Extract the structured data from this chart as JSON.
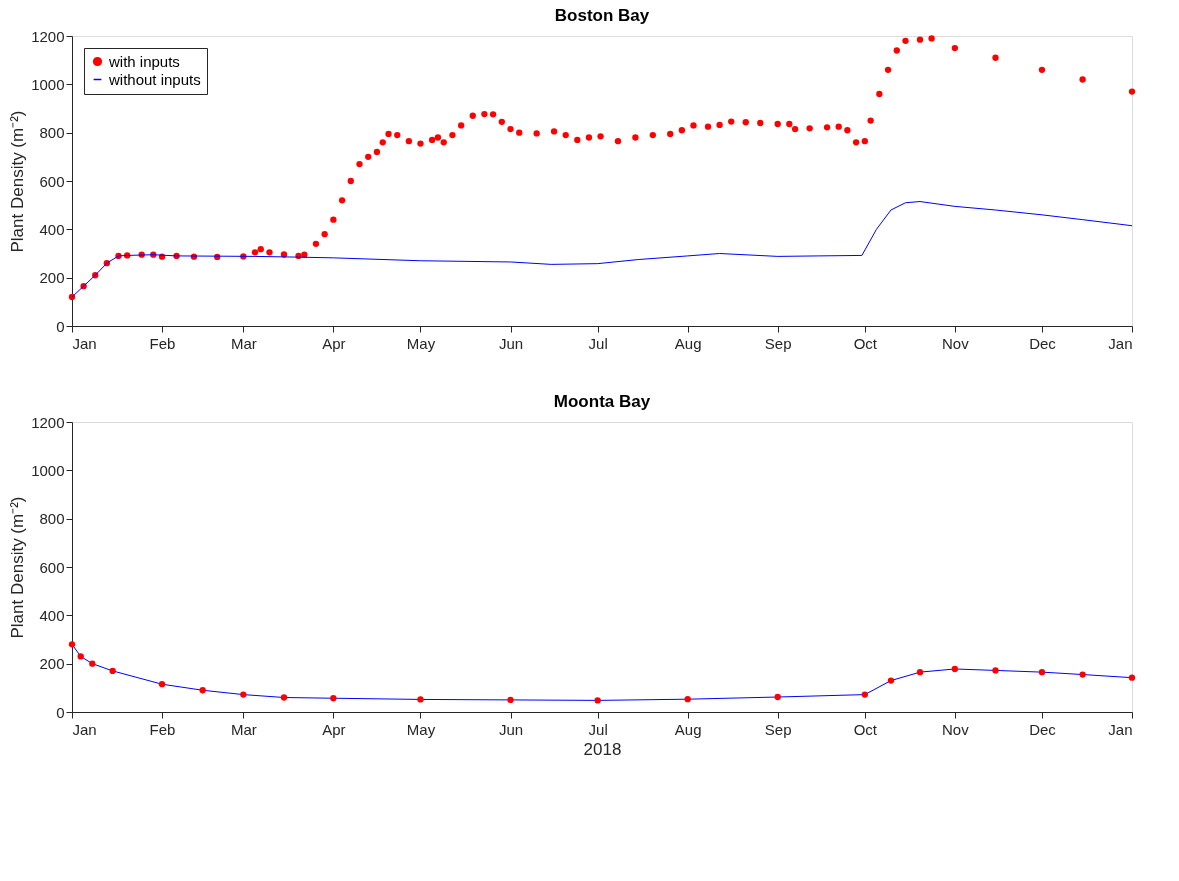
{
  "chart_data": [
    {
      "type": "line",
      "title": "Boston Bay",
      "ylabel": "Plant Density (m⁻²)",
      "xlim": [
        "2018-01-01",
        "2019-01-01"
      ],
      "xticks": [
        {
          "value": "2018-01-01",
          "label": "Jan"
        },
        {
          "value": "2018-02-01",
          "label": "Feb"
        },
        {
          "value": "2018-03-01",
          "label": "Mar"
        },
        {
          "value": "2018-04-01",
          "label": "Apr"
        },
        {
          "value": "2018-05-01",
          "label": "May"
        },
        {
          "value": "2018-06-01",
          "label": "Jun"
        },
        {
          "value": "2018-07-01",
          "label": "Jul"
        },
        {
          "value": "2018-08-01",
          "label": "Aug"
        },
        {
          "value": "2018-09-01",
          "label": "Sep"
        },
        {
          "value": "2018-10-01",
          "label": "Oct"
        },
        {
          "value": "2018-11-01",
          "label": "Nov"
        },
        {
          "value": "2018-12-01",
          "label": "Dec"
        },
        {
          "value": "2019-01-01",
          "label": "Jan"
        }
      ],
      "ylim": [
        0,
        1200
      ],
      "yticks": [
        0,
        200,
        400,
        600,
        800,
        1000,
        1200
      ],
      "grid": false,
      "legend": "top left",
      "series": [
        {
          "name": "with inputs",
          "type": "scatter",
          "marker": "circle",
          "color": "#ff0000",
          "x": [
            "2018-01-01",
            "2018-01-05",
            "2018-01-09",
            "2018-01-13",
            "2018-01-17",
            "2018-01-20",
            "2018-01-25",
            "2018-01-29",
            "2018-02-01",
            "2018-02-06",
            "2018-02-12",
            "2018-02-20",
            "2018-03-01",
            "2018-03-05",
            "2018-03-07",
            "2018-03-10",
            "2018-03-15",
            "2018-03-20",
            "2018-03-22",
            "2018-03-26",
            "2018-03-29",
            "2018-04-01",
            "2018-04-04",
            "2018-04-07",
            "2018-04-10",
            "2018-04-13",
            "2018-04-16",
            "2018-04-18",
            "2018-04-20",
            "2018-04-23",
            "2018-04-27",
            "2018-05-01",
            "2018-05-05",
            "2018-05-07",
            "2018-05-09",
            "2018-05-12",
            "2018-05-15",
            "2018-05-19",
            "2018-05-23",
            "2018-05-26",
            "2018-05-29",
            "2018-06-01",
            "2018-06-04",
            "2018-06-10",
            "2018-06-16",
            "2018-06-20",
            "2018-06-24",
            "2018-06-28",
            "2018-07-02",
            "2018-07-08",
            "2018-07-14",
            "2018-07-20",
            "2018-07-26",
            "2018-07-30",
            "2018-08-03",
            "2018-08-08",
            "2018-08-12",
            "2018-08-16",
            "2018-08-21",
            "2018-08-26",
            "2018-09-01",
            "2018-09-05",
            "2018-09-06",
            "2018-09-07",
            "2018-09-12",
            "2018-09-18",
            "2018-09-22",
            "2018-09-25",
            "2018-09-28",
            "2018-10-01",
            "2018-10-03",
            "2018-10-06",
            "2018-10-09",
            "2018-10-12",
            "2018-10-15",
            "2018-10-20",
            "2018-10-24",
            "2018-11-01",
            "2018-11-15",
            "2018-12-01",
            "2018-12-15",
            "2019-01-01"
          ],
          "values": [
            120,
            165,
            210,
            260,
            290,
            292,
            295,
            295,
            287,
            290,
            287,
            286,
            288,
            305,
            318,
            305,
            296,
            290,
            295,
            340,
            380,
            440,
            520,
            600,
            670,
            700,
            720,
            760,
            795,
            790,
            765,
            755,
            770,
            780,
            760,
            790,
            830,
            870,
            877,
            876,
            845,
            815,
            800,
            797,
            805,
            790,
            770,
            780,
            785,
            765,
            780,
            790,
            795,
            810,
            830,
            825,
            832,
            846,
            843,
            840,
            836,
            836,
            null,
            815,
            818,
            822,
            825,
            810,
            760,
            765,
            850,
            960,
            1060,
            1140,
            1180,
            1185,
            1190,
            1150,
            1110,
            1060,
            1020,
            970
          ]
        },
        {
          "name": "without inputs",
          "marker": "none",
          "color": "#0000ff",
          "x": [
            "2018-01-01",
            "2018-01-05",
            "2018-01-09",
            "2018-01-13",
            "2018-01-17",
            "2018-01-20",
            "2018-01-29",
            "2018-02-06",
            "2018-03-05",
            "2018-03-20",
            "2018-04-01",
            "2018-05-01",
            "2018-06-01",
            "2018-06-15",
            "2018-07-01",
            "2018-07-15",
            "2018-08-01",
            "2018-08-12",
            "2018-09-01",
            "2018-09-15",
            "2018-09-30",
            "2018-10-05",
            "2018-10-10",
            "2018-10-15",
            "2018-10-20",
            "2018-11-01",
            "2018-11-15",
            "2018-12-01",
            "2018-12-15",
            "2019-01-01"
          ],
          "values": [
            120,
            165,
            210,
            260,
            290,
            292,
            295,
            290,
            288,
            285,
            282,
            270,
            265,
            255,
            258,
            275,
            290,
            300,
            288,
            290,
            292,
            400,
            480,
            510,
            515,
            495,
            480,
            460,
            440,
            415
          ]
        }
      ]
    },
    {
      "type": "line",
      "title": "Moonta Bay",
      "ylabel": "Plant Density (m⁻²)",
      "xlabel": "2018",
      "xlim": [
        "2018-01-01",
        "2019-01-01"
      ],
      "xticks": [
        {
          "value": "2018-01-01",
          "label": "Jan"
        },
        {
          "value": "2018-02-01",
          "label": "Feb"
        },
        {
          "value": "2018-03-01",
          "label": "Mar"
        },
        {
          "value": "2018-04-01",
          "label": "Apr"
        },
        {
          "value": "2018-05-01",
          "label": "May"
        },
        {
          "value": "2018-06-01",
          "label": "Jun"
        },
        {
          "value": "2018-07-01",
          "label": "Jul"
        },
        {
          "value": "2018-08-01",
          "label": "Aug"
        },
        {
          "value": "2018-09-01",
          "label": "Sep"
        },
        {
          "value": "2018-10-01",
          "label": "Oct"
        },
        {
          "value": "2018-11-01",
          "label": "Nov"
        },
        {
          "value": "2018-12-01",
          "label": "Dec"
        },
        {
          "value": "2019-01-01",
          "label": "Jan"
        }
      ],
      "ylim": [
        0,
        1200
      ],
      "yticks": [
        0,
        200,
        400,
        600,
        800,
        1000,
        1200
      ],
      "grid": false,
      "legend": false,
      "series": [
        {
          "marker": "none",
          "color": "#0000ff",
          "x": [
            "2018-01-01",
            "2018-01-04",
            "2018-01-08",
            "2018-01-15",
            "2018-02-01",
            "2018-02-15",
            "2018-03-01",
            "2018-03-15",
            "2018-04-01",
            "2018-05-01",
            "2018-06-01",
            "2018-07-01",
            "2018-08-01",
            "2018-09-01",
            "2018-10-01",
            "2018-10-10",
            "2018-10-20",
            "2018-11-01",
            "2018-11-15",
            "2018-12-01",
            "2018-12-15",
            "2019-01-01"
          ],
          "values": [
            280,
            230,
            200,
            170,
            115,
            90,
            72,
            60,
            57,
            52,
            50,
            48,
            53,
            62,
            72,
            130,
            165,
            178,
            172,
            165,
            155,
            142
          ]
        },
        {
          "type": "scatter",
          "marker": "circle",
          "color": "#ff0000",
          "x": [
            "2018-01-01",
            "2018-01-04",
            "2018-01-08",
            "2018-01-15",
            "2018-02-01",
            "2018-02-15",
            "2018-03-01",
            "2018-03-15",
            "2018-04-01",
            "2018-05-01",
            "2018-06-01",
            "2018-07-01",
            "2018-08-01",
            "2018-09-01",
            "2018-10-01",
            "2018-10-10",
            "2018-10-20",
            "2018-11-01",
            "2018-11-15",
            "2018-12-01",
            "2018-12-15",
            "2019-01-01"
          ],
          "values": [
            280,
            230,
            200,
            170,
            115,
            90,
            72,
            60,
            57,
            52,
            50,
            48,
            53,
            62,
            72,
            130,
            165,
            178,
            172,
            165,
            155,
            142
          ]
        }
      ]
    }
  ]
}
